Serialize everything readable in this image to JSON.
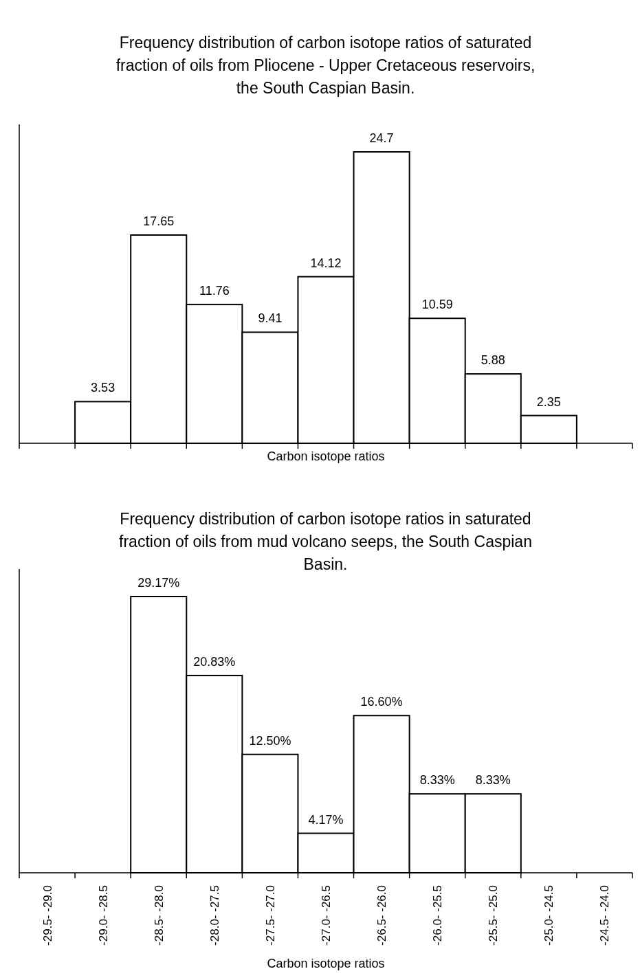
{
  "chart_data": [
    {
      "type": "bar",
      "title": "Frequency distribution of carbon isotope ratios of saturated fraction of oils from Pliocene - Upper Cretaceous reservoirs, the South Caspian Basin.",
      "xlabel": "Carbon isotope ratios",
      "categories": [
        null,
        null,
        null,
        null,
        null,
        null,
        null,
        null,
        null
      ],
      "values": [
        3.53,
        17.65,
        11.76,
        9.41,
        14.12,
        24.7,
        10.59,
        5.88,
        2.35
      ],
      "color": "#ffffff",
      "data_labels": true,
      "tick_labels": false
    },
    {
      "type": "bar",
      "title": "Frequency distribution of carbon isotope ratios  in saturated fraction of oils from mud volcano seeps, the South Caspian Basin.",
      "xlabel": "Carbon isotope ratios",
      "categories": [
        "-29.5- -29.0",
        "-29.0- -28.5",
        "-28.5- -28.0",
        "-28.0- -27.5",
        "-27.5- -27.0",
        "-27.0- -26.5",
        "-26.5- -26.0",
        "-26.0- -25.5",
        "-25.5- -25.0",
        "-25.0- -24.5",
        "-24.5- -24.0"
      ],
      "values": [
        null,
        null,
        29.17,
        20.83,
        12.5,
        4.17,
        16.6,
        8.33,
        8.33,
        null,
        null
      ],
      "value_labels": [
        null,
        null,
        "29.17%",
        "20.83%",
        "12.50%",
        "4.17%",
        "16.60%",
        "8.33%",
        "8.33%",
        null,
        null
      ],
      "color": "#ffffff",
      "tick_labels": "x"
    }
  ]
}
